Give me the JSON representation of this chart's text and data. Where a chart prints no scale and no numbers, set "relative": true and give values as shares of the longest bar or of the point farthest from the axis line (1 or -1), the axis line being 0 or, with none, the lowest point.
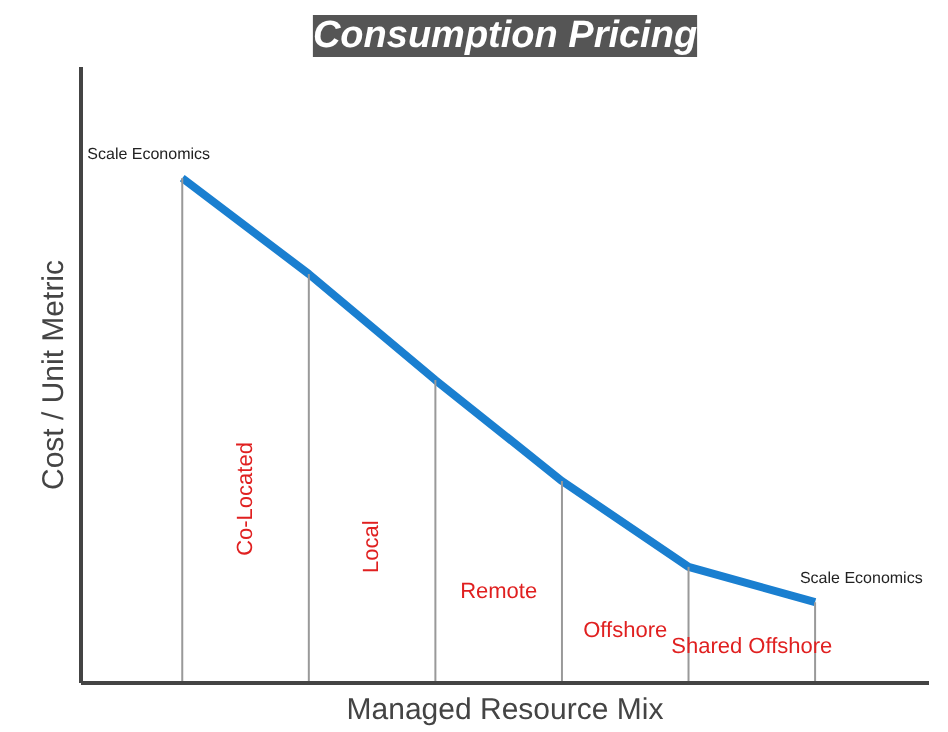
{
  "chart_data": {
    "type": "line",
    "title": "Consumption Pricing",
    "xlabel": "Managed Resource Mix",
    "ylabel": "Cost / Unit Metric",
    "categories": [
      null,
      null,
      null,
      null,
      null,
      null
    ],
    "relative": true,
    "series": [
      {
        "color": "#1a7fd0",
        "values": [
          1,
          0.81,
          0.6,
          0.4,
          0.23,
          0.16
        ]
      }
    ],
    "annotations": [
      "Scale Economics",
      "Co-Located",
      "Local",
      "Remote",
      "Offshore",
      "Shared Offshore",
      "Scale Economics"
    ],
    "marker": "none",
    "line_style": "solid"
  }
}
